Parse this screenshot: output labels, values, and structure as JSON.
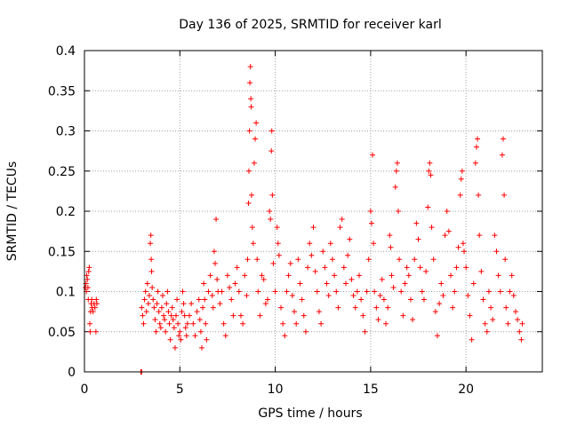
{
  "chart_data": {
    "type": "scatter",
    "title": "Day 136 of 2025, SRMTID for receiver karl",
    "xlabel": "GPS time / hours",
    "ylabel": "SRMTID / TECUs",
    "xlim": [
      0,
      24
    ],
    "ylim": [
      0,
      0.4
    ],
    "xticks": [
      0,
      5,
      10,
      15,
      20
    ],
    "xtick_labels": [
      "0",
      "5",
      "10",
      "15",
      "20"
    ],
    "yticks": [
      0,
      0.05,
      0.1,
      0.15,
      0.2,
      0.25,
      0.3,
      0.35,
      0.4
    ],
    "ytick_labels": [
      "0",
      "0.05",
      "0.1",
      "0.15",
      "0.2",
      "0.25",
      "0.3",
      "0.35",
      "0.4"
    ],
    "grid": true,
    "marker": "+",
    "color": "#ff0000",
    "series": [
      {
        "name": "SRMTID",
        "points": [
          [
            0.05,
            0.105
          ],
          [
            0.08,
            0.11
          ],
          [
            0.1,
            0.1
          ],
          [
            0.12,
            0.12
          ],
          [
            0.15,
            0.115
          ],
          [
            0.18,
            0.105
          ],
          [
            0.2,
            0.09
          ],
          [
            0.22,
            0.125
          ],
          [
            0.25,
            0.13
          ],
          [
            0.28,
            0.06
          ],
          [
            0.3,
            0.05
          ],
          [
            0.32,
            0.075
          ],
          [
            0.35,
            0.085
          ],
          [
            0.38,
            0.09
          ],
          [
            0.4,
            0.08
          ],
          [
            0.45,
            0.075
          ],
          [
            0.5,
            0.085
          ],
          [
            0.55,
            0.08
          ],
          [
            0.6,
            0.05
          ],
          [
            0.62,
            0.09
          ],
          [
            0.65,
            0.085
          ],
          [
            2.95,
            0.0
          ],
          [
            3.0,
            0.0
          ],
          [
            3.0,
            0.08
          ],
          [
            3.05,
            0.07
          ],
          [
            3.1,
            0.06
          ],
          [
            3.15,
            0.09
          ],
          [
            3.2,
            0.1
          ],
          [
            3.25,
            0.075
          ],
          [
            3.3,
            0.11
          ],
          [
            3.35,
            0.085
          ],
          [
            3.4,
            0.095
          ],
          [
            3.45,
            0.16
          ],
          [
            3.48,
            0.17
          ],
          [
            3.5,
            0.14
          ],
          [
            3.52,
            0.125
          ],
          [
            3.55,
            0.105
          ],
          [
            3.6,
            0.09
          ],
          [
            3.65,
            0.08
          ],
          [
            3.7,
            0.065
          ],
          [
            3.75,
            0.05
          ],
          [
            3.8,
            0.085
          ],
          [
            3.85,
            0.1
          ],
          [
            3.9,
            0.075
          ],
          [
            3.95,
            0.06
          ],
          [
            4.0,
            0.055
          ],
          [
            4.05,
            0.08
          ],
          [
            4.1,
            0.095
          ],
          [
            4.15,
            0.07
          ],
          [
            4.2,
            0.065
          ],
          [
            4.25,
            0.05
          ],
          [
            4.3,
            0.085
          ],
          [
            4.35,
            0.1
          ],
          [
            4.4,
            0.075
          ],
          [
            4.45,
            0.06
          ],
          [
            4.5,
            0.04
          ],
          [
            4.55,
            0.07
          ],
          [
            4.6,
            0.08
          ],
          [
            4.65,
            0.065
          ],
          [
            4.7,
            0.055
          ],
          [
            4.75,
            0.03
          ],
          [
            4.8,
            0.07
          ],
          [
            4.85,
            0.09
          ],
          [
            4.9,
            0.06
          ],
          [
            4.95,
            0.045
          ],
          [
            5.0,
            0.05
          ],
          [
            5.05,
            0.04
          ],
          [
            5.1,
            0.075
          ],
          [
            5.15,
            0.1
          ],
          [
            5.2,
            0.085
          ],
          [
            5.25,
            0.07
          ],
          [
            5.3,
            0.055
          ],
          [
            5.35,
            0.045
          ],
          [
            5.4,
            0.06
          ],
          [
            5.5,
            0.07
          ],
          [
            5.6,
            0.085
          ],
          [
            5.7,
            0.06
          ],
          [
            5.8,
            0.045
          ],
          [
            5.9,
            0.075
          ],
          [
            6.0,
            0.09
          ],
          [
            6.05,
            0.065
          ],
          [
            6.1,
            0.05
          ],
          [
            6.15,
            0.03
          ],
          [
            6.2,
            0.08
          ],
          [
            6.25,
            0.11
          ],
          [
            6.3,
            0.09
          ],
          [
            6.35,
            0.06
          ],
          [
            6.4,
            0.04
          ],
          [
            6.5,
            0.1
          ],
          [
            6.6,
            0.12
          ],
          [
            6.7,
            0.095
          ],
          [
            6.75,
            0.08
          ],
          [
            6.8,
            0.15
          ],
          [
            6.85,
            0.135
          ],
          [
            6.9,
            0.19
          ],
          [
            6.95,
            0.115
          ],
          [
            7.0,
            0.1
          ],
          [
            7.1,
            0.085
          ],
          [
            7.2,
            0.1
          ],
          [
            7.3,
            0.06
          ],
          [
            7.4,
            0.045
          ],
          [
            7.5,
            0.12
          ],
          [
            7.6,
            0.105
          ],
          [
            7.7,
            0.09
          ],
          [
            7.8,
            0.07
          ],
          [
            7.9,
            0.11
          ],
          [
            8.0,
            0.13
          ],
          [
            8.1,
            0.1
          ],
          [
            8.2,
            0.07
          ],
          [
            8.3,
            0.06
          ],
          [
            8.4,
            0.12
          ],
          [
            8.5,
            0.095
          ],
          [
            8.55,
            0.14
          ],
          [
            8.6,
            0.21
          ],
          [
            8.62,
            0.25
          ],
          [
            8.65,
            0.3
          ],
          [
            8.67,
            0.36
          ],
          [
            8.7,
            0.38
          ],
          [
            8.72,
            0.34
          ],
          [
            8.74,
            0.33
          ],
          [
            8.76,
            0.22
          ],
          [
            8.8,
            0.18
          ],
          [
            8.85,
            0.16
          ],
          [
            8.9,
            0.26
          ],
          [
            8.95,
            0.29
          ],
          [
            9.0,
            0.31
          ],
          [
            9.05,
            0.14
          ],
          [
            9.1,
            0.1
          ],
          [
            9.2,
            0.07
          ],
          [
            9.3,
            0.12
          ],
          [
            9.4,
            0.115
          ],
          [
            9.5,
            0.085
          ],
          [
            9.6,
            0.09
          ],
          [
            9.7,
            0.2
          ],
          [
            9.75,
            0.19
          ],
          [
            9.8,
            0.275
          ],
          [
            9.82,
            0.3
          ],
          [
            9.85,
            0.22
          ],
          [
            9.9,
            0.135
          ],
          [
            10.0,
            0.1
          ],
          [
            10.1,
            0.18
          ],
          [
            10.15,
            0.16
          ],
          [
            10.2,
            0.145
          ],
          [
            10.3,
            0.08
          ],
          [
            10.4,
            0.06
          ],
          [
            10.5,
            0.045
          ],
          [
            10.6,
            0.1
          ],
          [
            10.7,
            0.12
          ],
          [
            10.8,
            0.135
          ],
          [
            10.9,
            0.095
          ],
          [
            11.0,
            0.075
          ],
          [
            11.1,
            0.06
          ],
          [
            11.2,
            0.14
          ],
          [
            11.3,
            0.11
          ],
          [
            11.4,
            0.09
          ],
          [
            11.5,
            0.07
          ],
          [
            11.6,
            0.05
          ],
          [
            11.7,
            0.13
          ],
          [
            11.8,
            0.16
          ],
          [
            11.9,
            0.145
          ],
          [
            12.0,
            0.18
          ],
          [
            12.1,
            0.125
          ],
          [
            12.2,
            0.1
          ],
          [
            12.3,
            0.075
          ],
          [
            12.4,
            0.06
          ],
          [
            12.5,
            0.15
          ],
          [
            12.6,
            0.13
          ],
          [
            12.7,
            0.11
          ],
          [
            12.8,
            0.095
          ],
          [
            12.9,
            0.16
          ],
          [
            13.0,
            0.14
          ],
          [
            13.1,
            0.12
          ],
          [
            13.2,
            0.1
          ],
          [
            13.3,
            0.08
          ],
          [
            13.4,
            0.18
          ],
          [
            13.5,
            0.19
          ],
          [
            13.6,
            0.13
          ],
          [
            13.7,
            0.11
          ],
          [
            13.8,
            0.145
          ],
          [
            13.9,
            0.165
          ],
          [
            14.0,
            0.115
          ],
          [
            14.1,
            0.095
          ],
          [
            14.2,
            0.08
          ],
          [
            14.3,
            0.1
          ],
          [
            14.4,
            0.12
          ],
          [
            14.5,
            0.09
          ],
          [
            14.6,
            0.07
          ],
          [
            14.7,
            0.05
          ],
          [
            14.8,
            0.1
          ],
          [
            14.9,
            0.14
          ],
          [
            15.0,
            0.2
          ],
          [
            15.05,
            0.185
          ],
          [
            15.1,
            0.27
          ],
          [
            15.15,
            0.16
          ],
          [
            15.2,
            0.1
          ],
          [
            15.3,
            0.08
          ],
          [
            15.4,
            0.065
          ],
          [
            15.5,
            0.095
          ],
          [
            15.6,
            0.115
          ],
          [
            15.7,
            0.09
          ],
          [
            15.8,
            0.06
          ],
          [
            15.9,
            0.08
          ],
          [
            16.0,
            0.17
          ],
          [
            16.05,
            0.155
          ],
          [
            16.1,
            0.12
          ],
          [
            16.2,
            0.105
          ],
          [
            16.3,
            0.23
          ],
          [
            16.35,
            0.25
          ],
          [
            16.4,
            0.26
          ],
          [
            16.45,
            0.2
          ],
          [
            16.5,
            0.14
          ],
          [
            16.6,
            0.1
          ],
          [
            16.7,
            0.07
          ],
          [
            16.8,
            0.11
          ],
          [
            16.9,
            0.13
          ],
          [
            17.0,
            0.12
          ],
          [
            17.1,
            0.09
          ],
          [
            17.2,
            0.065
          ],
          [
            17.3,
            0.14
          ],
          [
            17.4,
            0.185
          ],
          [
            17.5,
            0.165
          ],
          [
            17.6,
            0.13
          ],
          [
            17.7,
            0.1
          ],
          [
            17.8,
            0.09
          ],
          [
            17.9,
            0.125
          ],
          [
            18.0,
            0.205
          ],
          [
            18.05,
            0.25
          ],
          [
            18.1,
            0.26
          ],
          [
            18.15,
            0.245
          ],
          [
            18.2,
            0.18
          ],
          [
            18.3,
            0.14
          ],
          [
            18.4,
            0.075
          ],
          [
            18.5,
            0.045
          ],
          [
            18.6,
            0.085
          ],
          [
            18.7,
            0.11
          ],
          [
            18.8,
            0.095
          ],
          [
            18.9,
            0.17
          ],
          [
            19.0,
            0.2
          ],
          [
            19.1,
            0.175
          ],
          [
            19.2,
            0.12
          ],
          [
            19.3,
            0.08
          ],
          [
            19.4,
            0.1
          ],
          [
            19.5,
            0.13
          ],
          [
            19.6,
            0.155
          ],
          [
            19.7,
            0.22
          ],
          [
            19.75,
            0.24
          ],
          [
            19.8,
            0.25
          ],
          [
            19.85,
            0.16
          ],
          [
            19.9,
            0.15
          ],
          [
            20.0,
            0.13
          ],
          [
            20.1,
            0.095
          ],
          [
            20.2,
            0.07
          ],
          [
            20.3,
            0.04
          ],
          [
            20.4,
            0.11
          ],
          [
            20.5,
            0.26
          ],
          [
            20.55,
            0.28
          ],
          [
            20.6,
            0.29
          ],
          [
            20.65,
            0.22
          ],
          [
            20.7,
            0.17
          ],
          [
            20.8,
            0.125
          ],
          [
            20.9,
            0.09
          ],
          [
            21.0,
            0.06
          ],
          [
            21.1,
            0.05
          ],
          [
            21.2,
            0.1
          ],
          [
            21.3,
            0.08
          ],
          [
            21.4,
            0.065
          ],
          [
            21.5,
            0.17
          ],
          [
            21.6,
            0.15
          ],
          [
            21.7,
            0.12
          ],
          [
            21.8,
            0.1
          ],
          [
            21.9,
            0.27
          ],
          [
            21.95,
            0.29
          ],
          [
            22.0,
            0.22
          ],
          [
            22.05,
            0.14
          ],
          [
            22.1,
            0.08
          ],
          [
            22.2,
            0.06
          ],
          [
            22.3,
            0.1
          ],
          [
            22.4,
            0.12
          ],
          [
            22.5,
            0.095
          ],
          [
            22.6,
            0.075
          ],
          [
            22.7,
            0.065
          ],
          [
            22.8,
            0.05
          ],
          [
            22.9,
            0.04
          ],
          [
            22.95,
            0.06
          ]
        ]
      }
    ]
  }
}
